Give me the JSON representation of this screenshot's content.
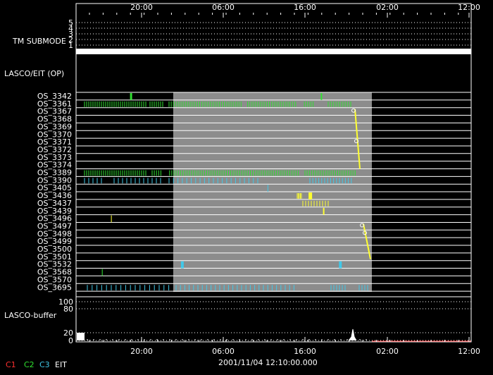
{
  "chart_data": {
    "type": "timeline",
    "title": "",
    "time_axis": {
      "start_hours": 10,
      "end_hours": 46,
      "ticks": [
        {
          "h": 20,
          "label": "20:00"
        },
        {
          "h": 30,
          "label": "06:00"
        },
        {
          "h": 40,
          "label": "16:00"
        },
        {
          "h": 50,
          "label": "02:00"
        },
        {
          "h": 60,
          "label": "12:00"
        }
      ]
    },
    "timestamp": "2001/11/04 12:10:00.000",
    "shaded_window_hours": [
      25.3,
      50.0
    ],
    "panels": {
      "tm_submode": {
        "label": "TM SUBMODE",
        "levels": [
          "5",
          "4",
          "3",
          "2",
          "1"
        ],
        "active_level": "1"
      },
      "lasco_eit": {
        "label": "LASCO/EIT (OP)"
      },
      "lasco_buffer": {
        "label": "LASCO-buffer",
        "ticks": [
          "100",
          "80",
          "20",
          "0"
        ]
      }
    },
    "rows": [
      "OS_3342",
      "OS_3361",
      "OS_3367",
      "OS_3368",
      "OS_3369",
      "OS_3370",
      "OS_3371",
      "OS_3372",
      "OS_3373",
      "OS_3374",
      "OS_3389",
      "OS_3390",
      "OS_3405",
      "OS_3436",
      "OS_3437",
      "OS_3439",
      "OS_3496",
      "OS_3497",
      "OS_3498",
      "OS_3499",
      "OS_3500",
      "OS_3501",
      "OS_3532",
      "OS_3568",
      "OS_3570",
      "OS_3695"
    ],
    "legend": [
      {
        "label": "C1",
        "color": "#ff3030"
      },
      {
        "label": "C2",
        "color": "#30e030"
      },
      {
        "label": "C3",
        "color": "#40c8e8"
      },
      {
        "label": "EIT",
        "color": "#ffffff"
      }
    ],
    "events": {
      "OS_3342": [
        {
          "h": 17.1,
          "c": "C2",
          "w": 3
        },
        {
          "h": 42.2,
          "c": "C2",
          "w": 2
        }
      ],
      "OS_3436": [
        {
          "h": 40.6,
          "c": "EIT_Y",
          "w": 5
        }
      ],
      "OS_3439": [
        {
          "h": 42.5,
          "c": "EIT_Y",
          "w": 2
        }
      ],
      "OS_3496": [
        {
          "h": 14.6,
          "c": "EIT_Y",
          "w": 1
        }
      ],
      "OS_3532": [
        {
          "h": 23.8,
          "c": "C3",
          "w": 4
        },
        {
          "h": 44.6,
          "c": "C3",
          "w": 4
        }
      ],
      "OS_3568": [
        {
          "h": 13.4,
          "c": "C2",
          "w": 1
        }
      ],
      "OS_3405": [
        {
          "h": 35.2,
          "c": "C3",
          "w": 1
        }
      ]
    }
  }
}
